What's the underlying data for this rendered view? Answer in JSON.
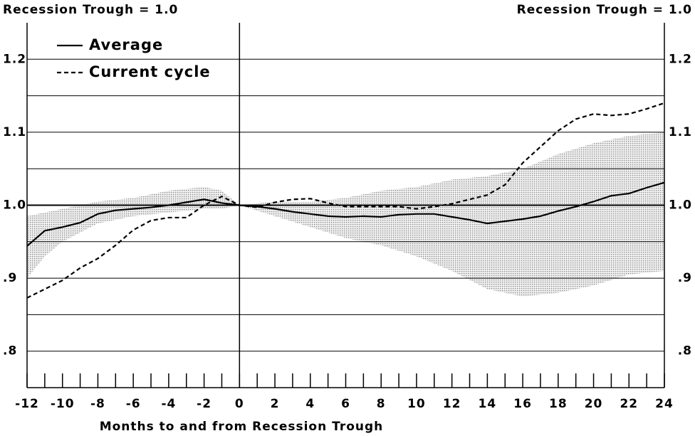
{
  "chart_data": {
    "type": "line",
    "left_axis_label": "Recession Trough = 1.0",
    "right_axis_label": "Recession Trough = 1.0",
    "x_label": "Months to and from Recession Trough",
    "x": [
      -12,
      -11,
      -10,
      -9,
      -8,
      -7,
      -6,
      -5,
      -4,
      -3,
      -2,
      -1,
      0,
      1,
      2,
      3,
      4,
      5,
      6,
      7,
      8,
      9,
      10,
      11,
      12,
      13,
      14,
      15,
      16,
      17,
      18,
      19,
      20,
      21,
      22,
      23,
      24
    ],
    "series": [
      {
        "name": "Average",
        "color": "#000000",
        "dash": "solid",
        "values": [
          0.944,
          0.965,
          0.97,
          0.976,
          0.988,
          0.993,
          0.995,
          0.997,
          1.0,
          1.004,
          1.008,
          1.003,
          1.0,
          0.998,
          0.995,
          0.991,
          0.988,
          0.985,
          0.984,
          0.985,
          0.984,
          0.987,
          0.988,
          0.988,
          0.984,
          0.98,
          0.975,
          0.978,
          0.981,
          0.985,
          0.992,
          0.998,
          1.005,
          1.013,
          1.016,
          1.024,
          1.031
        ]
      },
      {
        "name": "Current cycle",
        "color": "#000000",
        "dash": "dashed",
        "values": [
          0.873,
          0.885,
          0.897,
          0.914,
          0.927,
          0.945,
          0.966,
          0.979,
          0.983,
          0.983,
          1.0,
          1.012,
          1.0,
          0.997,
          1.004,
          1.008,
          1.009,
          1.003,
          0.998,
          0.998,
          0.998,
          0.998,
          0.995,
          0.998,
          1.002,
          1.008,
          1.014,
          1.028,
          1.058,
          1.08,
          1.102,
          1.118,
          1.125,
          1.123,
          1.125,
          1.132,
          1.14
        ]
      }
    ],
    "band": {
      "color": "#9a9a9a",
      "x": [
        -12,
        -11,
        -10,
        -8,
        -6,
        -4,
        -2,
        -1,
        0,
        2,
        4,
        6,
        8,
        10,
        12,
        14,
        16,
        18,
        20,
        22,
        24
      ],
      "low": [
        0.9,
        0.93,
        0.95,
        0.975,
        0.985,
        0.99,
        0.995,
        0.995,
        1.0,
        0.985,
        0.97,
        0.955,
        0.945,
        0.93,
        0.91,
        0.885,
        0.875,
        0.88,
        0.89,
        0.905,
        0.91
      ],
      "high": [
        0.985,
        0.99,
        0.995,
        1.005,
        1.01,
        1.02,
        1.025,
        1.02,
        1.0,
        1.005,
        1.005,
        1.01,
        1.02,
        1.025,
        1.035,
        1.04,
        1.05,
        1.07,
        1.085,
        1.095,
        1.1
      ]
    },
    "xlim": [
      -12,
      24
    ],
    "xticks": [
      -12,
      -10,
      -8,
      -6,
      -4,
      -2,
      0,
      2,
      4,
      6,
      8,
      10,
      12,
      14,
      16,
      18,
      20,
      22,
      24
    ],
    "xminor_ticks": [
      -11,
      -9,
      -7,
      -5,
      -3,
      -1,
      1,
      3,
      5,
      7,
      9,
      11,
      13,
      15,
      17,
      19,
      21,
      23
    ],
    "ylim": [
      0.75,
      1.25
    ],
    "yticks": [
      {
        "value": 0.8,
        "label": ".8"
      },
      {
        "value": 0.9,
        "label": ".9"
      },
      {
        "value": 1.0,
        "label": "1.0"
      },
      1.1,
      1.2
    ],
    "y2lim": [
      0.75,
      1.25
    ],
    "y2ticks": [
      {
        "value": 0.8,
        "label": ".8"
      },
      {
        "value": 0.9,
        "label": ".9"
      },
      {
        "value": 1.0,
        "label": "1.0"
      },
      1.1,
      1.2
    ],
    "grid_lines": [
      0.8,
      0.85,
      0.9,
      0.95,
      1.0,
      1.05,
      1.1,
      1.15,
      1.2
    ],
    "legend": "top-left"
  }
}
